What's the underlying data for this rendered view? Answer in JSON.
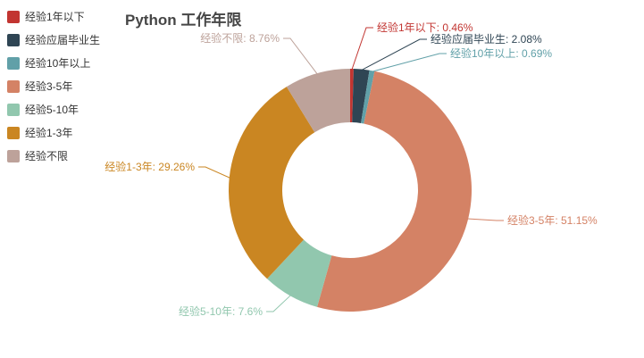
{
  "title": "Python 工作年限",
  "legend": {
    "items": [
      {
        "label": "经验1年以下",
        "color": "#c23531"
      },
      {
        "label": "经验应届毕业生",
        "color": "#2f4554"
      },
      {
        "label": "经验10年以上",
        "color": "#61a0a8"
      },
      {
        "label": "经验3-5年",
        "color": "#d48265"
      },
      {
        "label": "经验5-10年",
        "color": "#91c7ae"
      },
      {
        "label": "经验1-3年",
        "color": "#ca8622"
      },
      {
        "label": "经验不限",
        "color": "#bda29a"
      }
    ]
  },
  "chart_data": {
    "type": "pie",
    "subtype": "donut",
    "title": "Python 工作年限",
    "categories": [
      "经验1年以下",
      "经验应届毕业生",
      "经验10年以上",
      "经验3-5年",
      "经验5-10年",
      "经验1-3年",
      "经验不限"
    ],
    "values": [
      0.46,
      2.08,
      0.69,
      51.15,
      7.6,
      29.26,
      8.76
    ],
    "colors": [
      "#c23531",
      "#2f4554",
      "#61a0a8",
      "#d48265",
      "#91c7ae",
      "#ca8622",
      "#bda29a"
    ],
    "labels": [
      "经验1年以下: 0.46%",
      "经验应届毕业生: 2.08%",
      "经验10年以上: 0.69%",
      "经验3-5年: 51.15%",
      "经验5-10年: 7.6%",
      "经验1-3年: 29.26%",
      "经验不限: 8.76%"
    ],
    "legend_position": "top-left",
    "grid": false
  }
}
